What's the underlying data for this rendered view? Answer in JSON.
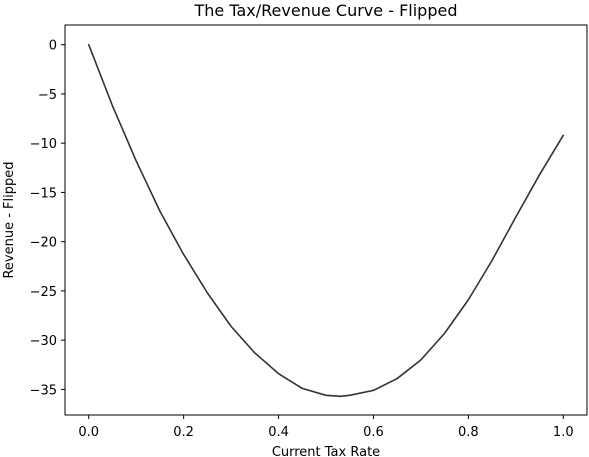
{
  "chart_data": {
    "type": "line",
    "title": "The Tax/Revenue Curve - Flipped",
    "xlabel": "Current Tax Rate",
    "ylabel": "Revenue - Flipped",
    "xlim": [
      -0.05,
      1.05
    ],
    "ylim": [
      -37.6,
      2.0
    ],
    "xticks": [
      0.0,
      0.2,
      0.4,
      0.6,
      0.8,
      1.0
    ],
    "xtick_labels": [
      "0.0",
      "0.2",
      "0.4",
      "0.6",
      "0.8",
      "1.0"
    ],
    "yticks": [
      0,
      -5,
      -10,
      -15,
      -20,
      -25,
      -30,
      -35
    ],
    "ytick_labels": [
      "0",
      "−5",
      "−10",
      "−15",
      "−20",
      "−25",
      "−30",
      "−35"
    ],
    "grid": false,
    "legend": "none",
    "series": [
      {
        "color": "#333333",
        "x": [
          0.0,
          0.05,
          0.1,
          0.15,
          0.2,
          0.25,
          0.3,
          0.35,
          0.4,
          0.45,
          0.5,
          0.53,
          0.55,
          0.6,
          0.65,
          0.7,
          0.75,
          0.8,
          0.85,
          0.9,
          0.95,
          1.0
        ],
        "y": [
          0.0,
          -6.2,
          -11.8,
          -16.9,
          -21.3,
          -25.2,
          -28.6,
          -31.3,
          -33.4,
          -34.9,
          -35.6,
          -35.7,
          -35.6,
          -35.1,
          -33.9,
          -32.0,
          -29.3,
          -25.9,
          -21.9,
          -17.5,
          -13.2,
          -9.2
        ]
      }
    ]
  }
}
